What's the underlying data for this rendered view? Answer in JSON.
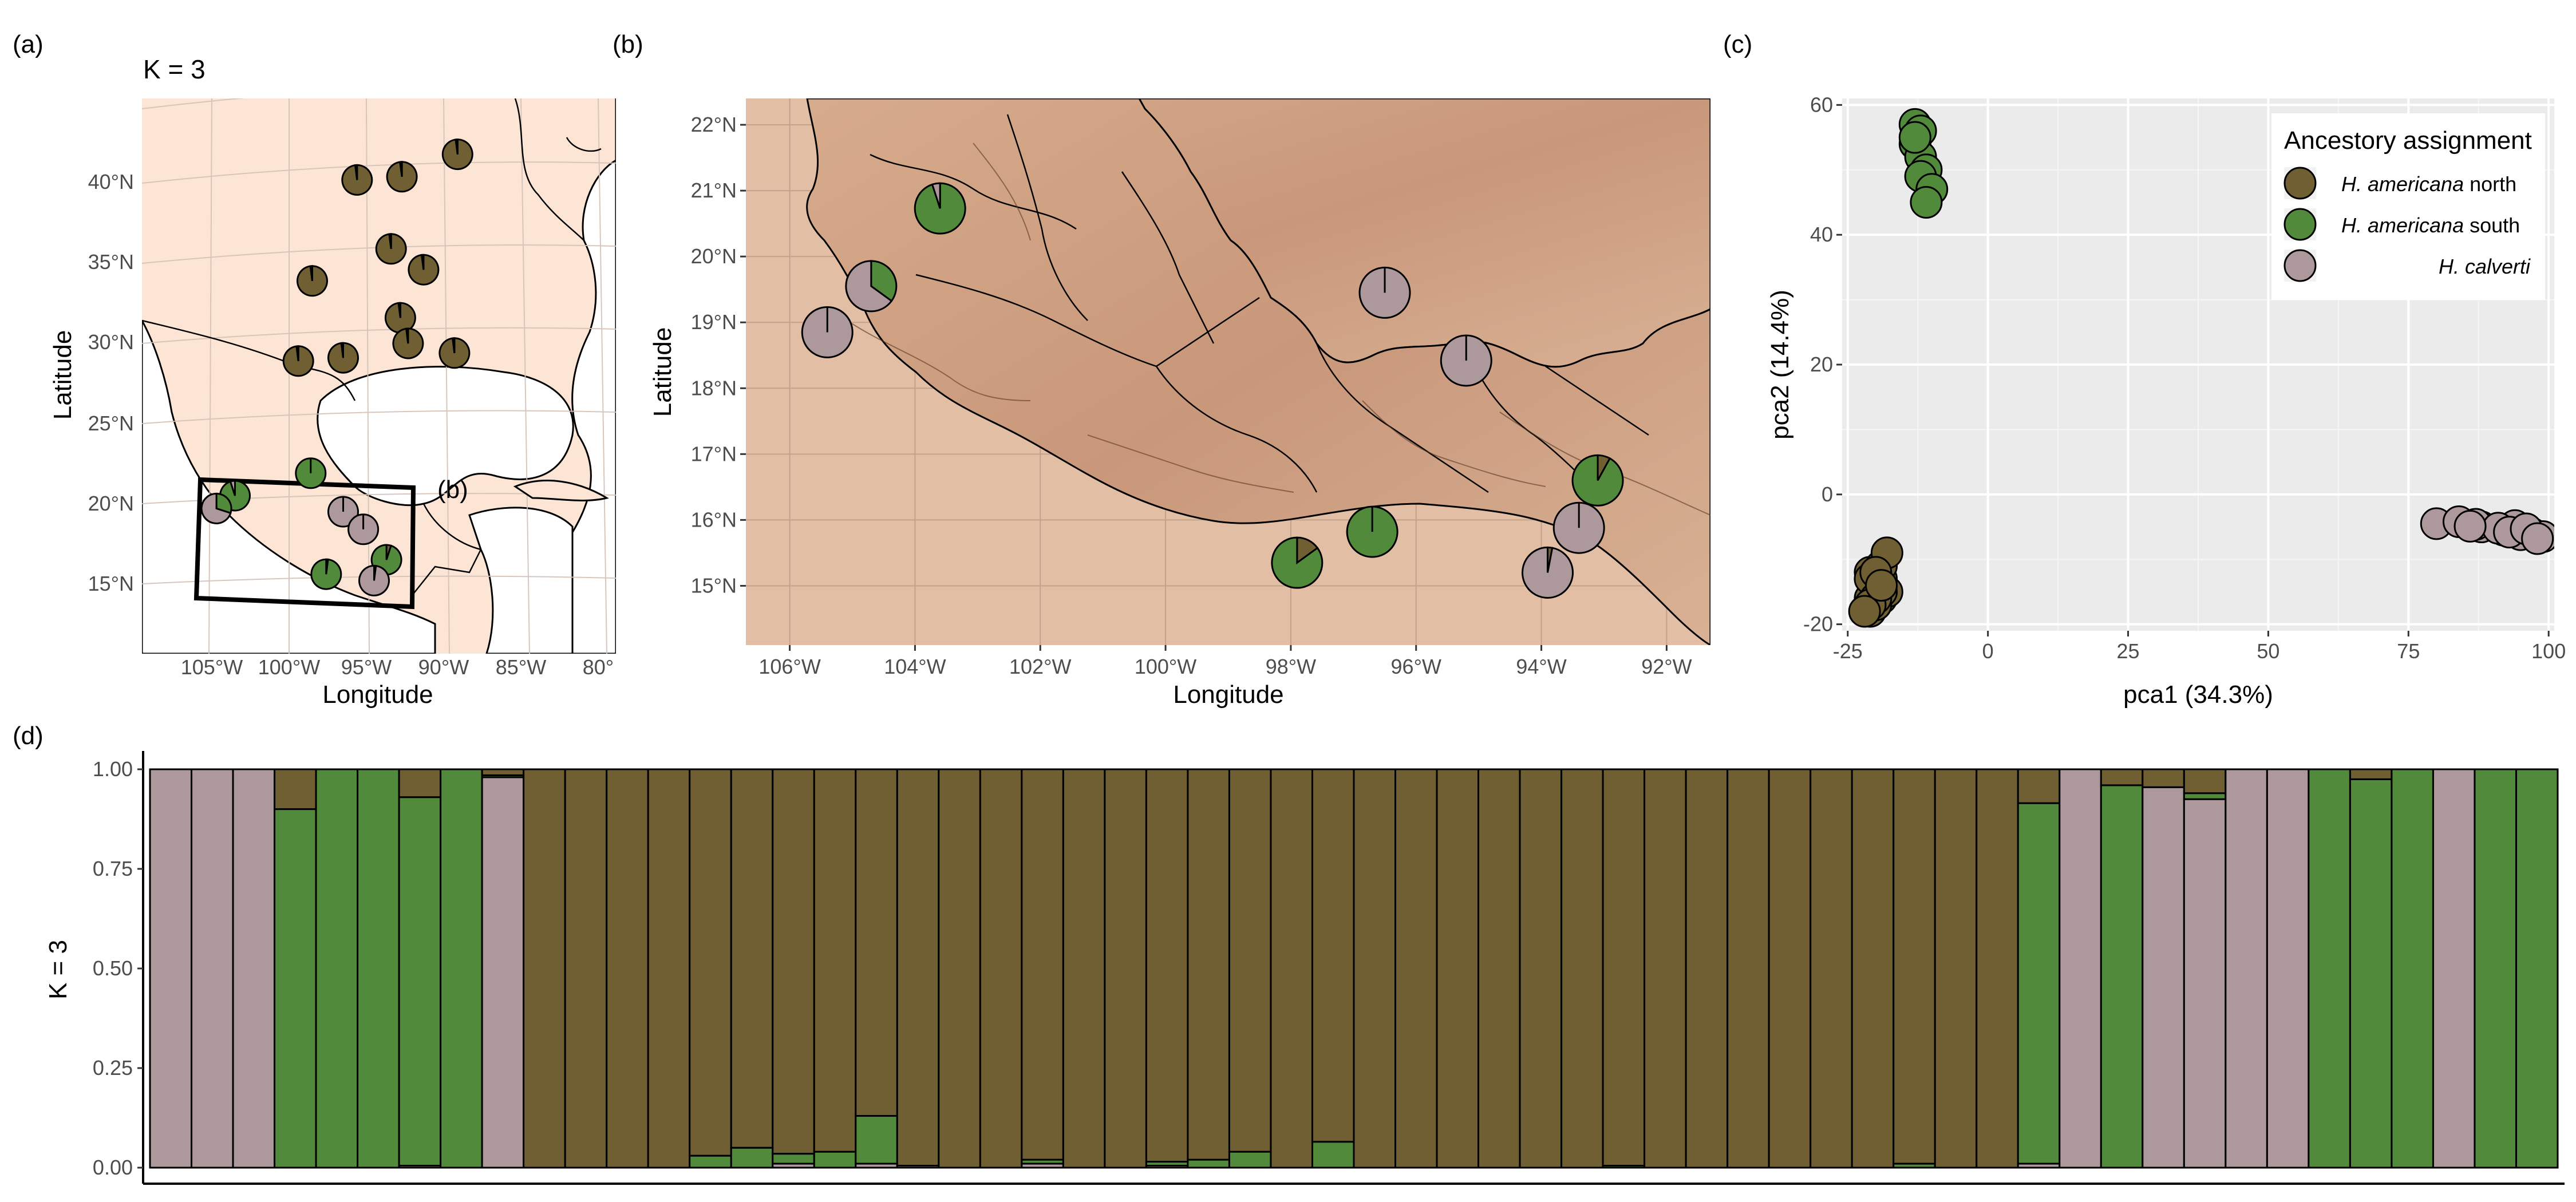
{
  "panel_labels": [
    "(a)",
    "(b)",
    "(c)",
    "(d)"
  ],
  "colors": {
    "north": "#6F5F32",
    "south": "#518A3A",
    "calverti": "#AD989B",
    "map_land": "#FDE5D6",
    "map_water": "#FFFFFF",
    "relief_base": "#E2BEA5",
    "pca_panel": "#EBEBEB"
  },
  "panel_a": {
    "title": "K =  3",
    "xlabel": "Longitude",
    "ylabel": "Latitude",
    "x_ticks": [
      "105°W",
      "100°W",
      "95°W",
      "90°W",
      "85°W",
      "80°"
    ],
    "y_ticks": [
      "15°N",
      "20°N",
      "25°N",
      "30°N",
      "35°N",
      "40°N"
    ],
    "inset_label": "(b)",
    "pies": [
      {
        "lon": -95.6,
        "lat": 40.2,
        "fr": [
          0.98,
          0.02,
          0.0
        ]
      },
      {
        "lon": -92.7,
        "lat": 40.4,
        "fr": [
          0.98,
          0.02,
          0.0
        ]
      },
      {
        "lon": -89.1,
        "lat": 41.8,
        "fr": [
          0.98,
          0.02,
          0.0
        ]
      },
      {
        "lon": -98.5,
        "lat": 33.9,
        "fr": [
          0.98,
          0.02,
          0.0
        ]
      },
      {
        "lon": -93.4,
        "lat": 35.9,
        "fr": [
          0.98,
          0.02,
          0.0
        ]
      },
      {
        "lon": -91.3,
        "lat": 34.6,
        "fr": [
          0.98,
          0.02,
          0.0
        ]
      },
      {
        "lon": -99.4,
        "lat": 28.9,
        "fr": [
          0.98,
          0.02,
          0.0
        ]
      },
      {
        "lon": -96.5,
        "lat": 29.1,
        "fr": [
          0.98,
          0.02,
          0.0
        ]
      },
      {
        "lon": -92.8,
        "lat": 31.6,
        "fr": [
          0.98,
          0.02,
          0.0
        ]
      },
      {
        "lon": -92.3,
        "lat": 30.0,
        "fr": [
          0.98,
          0.02,
          0.0
        ]
      },
      {
        "lon": -89.3,
        "lat": 29.4,
        "fr": [
          0.98,
          0.02,
          0.0
        ]
      },
      {
        "lon": -98.6,
        "lat": 21.9,
        "fr": [
          0.0,
          1.0,
          0.0
        ]
      },
      {
        "lon": -103.5,
        "lat": 20.5,
        "fr": [
          0.0,
          0.95,
          0.05
        ]
      },
      {
        "lon": -104.7,
        "lat": 19.7,
        "fr": [
          0.0,
          0.3,
          0.7
        ]
      },
      {
        "lon": -96.5,
        "lat": 19.5,
        "fr": [
          0.0,
          0.0,
          1.0
        ]
      },
      {
        "lon": -95.2,
        "lat": 18.4,
        "fr": [
          0.0,
          0.0,
          1.0
        ]
      },
      {
        "lon": -97.6,
        "lat": 15.6,
        "fr": [
          0.02,
          0.98,
          0.0
        ]
      },
      {
        "lon": -93.7,
        "lat": 16.5,
        "fr": [
          0.05,
          0.95,
          0.0
        ]
      },
      {
        "lon": -94.5,
        "lat": 15.2,
        "fr": [
          0.02,
          0.0,
          0.98
        ]
      }
    ]
  },
  "panel_b": {
    "xlabel": "Longitude",
    "ylabel": "Latitude",
    "x_ticks": [
      {
        "v": -106,
        "label": "106°W"
      },
      {
        "v": -104,
        "label": "104°W"
      },
      {
        "v": -102,
        "label": "102°W"
      },
      {
        "v": -100,
        "label": "100°W"
      },
      {
        "v": -98,
        "label": "98°W"
      },
      {
        "v": -96,
        "label": "96°W"
      },
      {
        "v": -94,
        "label": "94°W"
      },
      {
        "v": -92,
        "label": "92°W"
      }
    ],
    "y_ticks": [
      {
        "v": 15,
        "label": "15°N"
      },
      {
        "v": 16,
        "label": "16°N"
      },
      {
        "v": 17,
        "label": "17°N"
      },
      {
        "v": 18,
        "label": "18°N"
      },
      {
        "v": 19,
        "label": "19°N"
      },
      {
        "v": 20,
        "label": "20°N"
      },
      {
        "v": 21,
        "label": "21°N"
      },
      {
        "v": 22,
        "label": "22°N"
      }
    ],
    "xlim": [
      -106.7,
      -91.3
    ],
    "ylim": [
      14.1,
      22.4
    ],
    "pies": [
      {
        "lon": -103.6,
        "lat": 20.73,
        "fr": [
          0.0,
          0.95,
          0.05
        ]
      },
      {
        "lon": -104.7,
        "lat": 19.55,
        "fr": [
          0.0,
          0.35,
          0.65
        ]
      },
      {
        "lon": -105.4,
        "lat": 18.85,
        "fr": [
          0.0,
          0.0,
          1.0
        ]
      },
      {
        "lon": -96.5,
        "lat": 19.45,
        "fr": [
          0.0,
          0.0,
          1.0
        ]
      },
      {
        "lon": -95.2,
        "lat": 18.42,
        "fr": [
          0.0,
          0.0,
          1.0
        ]
      },
      {
        "lon": -93.1,
        "lat": 16.6,
        "fr": [
          0.08,
          0.92,
          0.0
        ]
      },
      {
        "lon": -93.4,
        "lat": 15.88,
        "fr": [
          0.0,
          0.0,
          1.0
        ]
      },
      {
        "lon": -93.9,
        "lat": 15.2,
        "fr": [
          0.03,
          0.0,
          0.97
        ]
      },
      {
        "lon": -96.7,
        "lat": 15.82,
        "fr": [
          0.0,
          1.0,
          0.0
        ]
      },
      {
        "lon": -97.9,
        "lat": 15.35,
        "fr": [
          0.15,
          0.85,
          0.0
        ]
      }
    ]
  },
  "panel_c": {
    "xlabel": "pca1 (34.3%)",
    "ylabel": "pca2 (14.4%)",
    "legend": {
      "title": "Ancestory assignment",
      "items": [
        {
          "italic": "H. americana",
          "plain": " north",
          "color": "#6F5F32"
        },
        {
          "italic": "H. americana",
          "plain": " south",
          "color": "#518A3A"
        },
        {
          "italic": "H. calverti",
          "plain": "",
          "color": "#AD989B"
        }
      ]
    }
  },
  "panel_d": {
    "ylabel": "K = 3",
    "yticks": [
      "0.00",
      "0.25",
      "0.50",
      "0.75",
      "1.00"
    ]
  },
  "chart_data": [
    {
      "type": "scatter",
      "title": "",
      "xlabel": "pca1 (34.3%)",
      "ylabel": "pca2 (14.4%)",
      "xlim": [
        -26,
        101
      ],
      "ylim": [
        -21,
        61
      ],
      "xticks": [
        -25,
        0,
        25,
        50,
        75,
        100
      ],
      "yticks": [
        -20,
        0,
        20,
        40,
        60
      ],
      "grid": true,
      "legend_position": "top-right",
      "series": [
        {
          "name": "H. americana north",
          "color": "#6F5F32",
          "x": [
            -21,
            -20,
            -19,
            -18,
            -20,
            -19,
            -21,
            -20,
            -21,
            -20,
            -19,
            -20,
            -21,
            -19,
            -18,
            -20,
            -21,
            -22,
            -20,
            -19
          ],
          "y": [
            -18,
            -17,
            -16,
            -15,
            -14,
            -13,
            -12,
            -15,
            -16,
            -17,
            -11,
            -14,
            -13,
            -15,
            -9,
            -16,
            -17,
            -18,
            -12,
            -14
          ]
        },
        {
          "name": "H. americana south",
          "color": "#518A3A",
          "x": [
            -13,
            -12,
            -13,
            -12,
            -11,
            -12,
            -10,
            -13,
            -11
          ],
          "y": [
            57,
            56,
            54,
            52,
            50,
            49,
            47,
            55,
            45
          ]
        },
        {
          "name": "H. calverti",
          "color": "#AD989B",
          "x": [
            80,
            84,
            88,
            92,
            94,
            97,
            99,
            87,
            91,
            95,
            86,
            93,
            96,
            98
          ],
          "y": [
            -4.5,
            -4.2,
            -5,
            -5.5,
            -4.8,
            -6,
            -6.5,
            -4.6,
            -5.2,
            -6.2,
            -4.9,
            -5.8,
            -5.3,
            -6.8
          ]
        }
      ]
    },
    {
      "type": "bar",
      "stacked": true,
      "title": "",
      "xlabel": "",
      "ylabel": "K = 3",
      "ylim": [
        0,
        1
      ],
      "series_names": [
        "calverti",
        "south",
        "north"
      ],
      "bars": [
        {
          "c": 1.0,
          "s": 0.0,
          "n": 0.0
        },
        {
          "c": 1.0,
          "s": 0.0,
          "n": 0.0
        },
        {
          "c": 1.0,
          "s": 0.0,
          "n": 0.0
        },
        {
          "c": 0.0,
          "s": 0.9,
          "n": 0.1
        },
        {
          "c": 0.0,
          "s": 1.0,
          "n": 0.0
        },
        {
          "c": 0.0,
          "s": 1.0,
          "n": 0.0
        },
        {
          "c": 0.005,
          "s": 0.925,
          "n": 0.07
        },
        {
          "c": 0.0,
          "s": 1.0,
          "n": 0.0
        },
        {
          "c": 0.98,
          "s": 0.005,
          "n": 0.015
        },
        {
          "c": 0.0,
          "s": 0.0,
          "n": 1.0
        },
        {
          "c": 0.0,
          "s": 0.0,
          "n": 1.0
        },
        {
          "c": 0.0,
          "s": 0.0,
          "n": 1.0
        },
        {
          "c": 0.0,
          "s": 0.0,
          "n": 1.0
        },
        {
          "c": 0.0,
          "s": 0.03,
          "n": 0.97
        },
        {
          "c": 0.0,
          "s": 0.05,
          "n": 0.95
        },
        {
          "c": 0.01,
          "s": 0.025,
          "n": 0.965
        },
        {
          "c": 0.0,
          "s": 0.04,
          "n": 0.96
        },
        {
          "c": 0.01,
          "s": 0.12,
          "n": 0.87
        },
        {
          "c": 0.005,
          "s": 0.0,
          "n": 0.995
        },
        {
          "c": 0.0,
          "s": 0.0,
          "n": 1.0
        },
        {
          "c": 0.0,
          "s": 0.0,
          "n": 1.0
        },
        {
          "c": 0.01,
          "s": 0.01,
          "n": 0.98
        },
        {
          "c": 0.0,
          "s": 0.0,
          "n": 1.0
        },
        {
          "c": 0.0,
          "s": 0.0,
          "n": 1.0
        },
        {
          "c": 0.005,
          "s": 0.01,
          "n": 0.985
        },
        {
          "c": 0.0,
          "s": 0.02,
          "n": 0.98
        },
        {
          "c": 0.0,
          "s": 0.04,
          "n": 0.96
        },
        {
          "c": 0.0,
          "s": 0.0,
          "n": 1.0
        },
        {
          "c": 0.0,
          "s": 0.065,
          "n": 0.935
        },
        {
          "c": 0.0,
          "s": 0.0,
          "n": 1.0
        },
        {
          "c": 0.0,
          "s": 0.0,
          "n": 1.0
        },
        {
          "c": 0.0,
          "s": 0.0,
          "n": 1.0
        },
        {
          "c": 0.0,
          "s": 0.0,
          "n": 1.0
        },
        {
          "c": 0.0,
          "s": 0.0,
          "n": 1.0
        },
        {
          "c": 0.0,
          "s": 0.0,
          "n": 1.0
        },
        {
          "c": 0.0,
          "s": 0.005,
          "n": 0.995
        },
        {
          "c": 0.0,
          "s": 0.0,
          "n": 1.0
        },
        {
          "c": 0.0,
          "s": 0.0,
          "n": 1.0
        },
        {
          "c": 0.0,
          "s": 0.0,
          "n": 1.0
        },
        {
          "c": 0.0,
          "s": 0.0,
          "n": 1.0
        },
        {
          "c": 0.0,
          "s": 0.0,
          "n": 1.0
        },
        {
          "c": 0.0,
          "s": 0.0,
          "n": 1.0
        },
        {
          "c": 0.0,
          "s": 0.01,
          "n": 0.99
        },
        {
          "c": 0.0,
          "s": 0.0,
          "n": 1.0
        },
        {
          "c": 0.0,
          "s": 0.0,
          "n": 1.0
        },
        {
          "c": 0.01,
          "s": 0.905,
          "n": 0.085
        },
        {
          "c": 1.0,
          "s": 0.0,
          "n": 0.0
        },
        {
          "c": 0.0,
          "s": 0.96,
          "n": 0.04
        },
        {
          "c": 0.955,
          "s": 0.0,
          "n": 0.045
        },
        {
          "c": 0.925,
          "s": 0.015,
          "n": 0.06
        },
        {
          "c": 1.0,
          "s": 0.0,
          "n": 0.0
        },
        {
          "c": 1.0,
          "s": 0.0,
          "n": 0.0
        },
        {
          "c": 0.0,
          "s": 1.0,
          "n": 0.0
        },
        {
          "c": 0.0,
          "s": 0.975,
          "n": 0.025
        },
        {
          "c": 0.0,
          "s": 1.0,
          "n": 0.0
        },
        {
          "c": 1.0,
          "s": 0.0,
          "n": 0.0
        },
        {
          "c": 0.0,
          "s": 1.0,
          "n": 0.0
        },
        {
          "c": 0.0,
          "s": 1.0,
          "n": 0.0
        }
      ]
    }
  ]
}
